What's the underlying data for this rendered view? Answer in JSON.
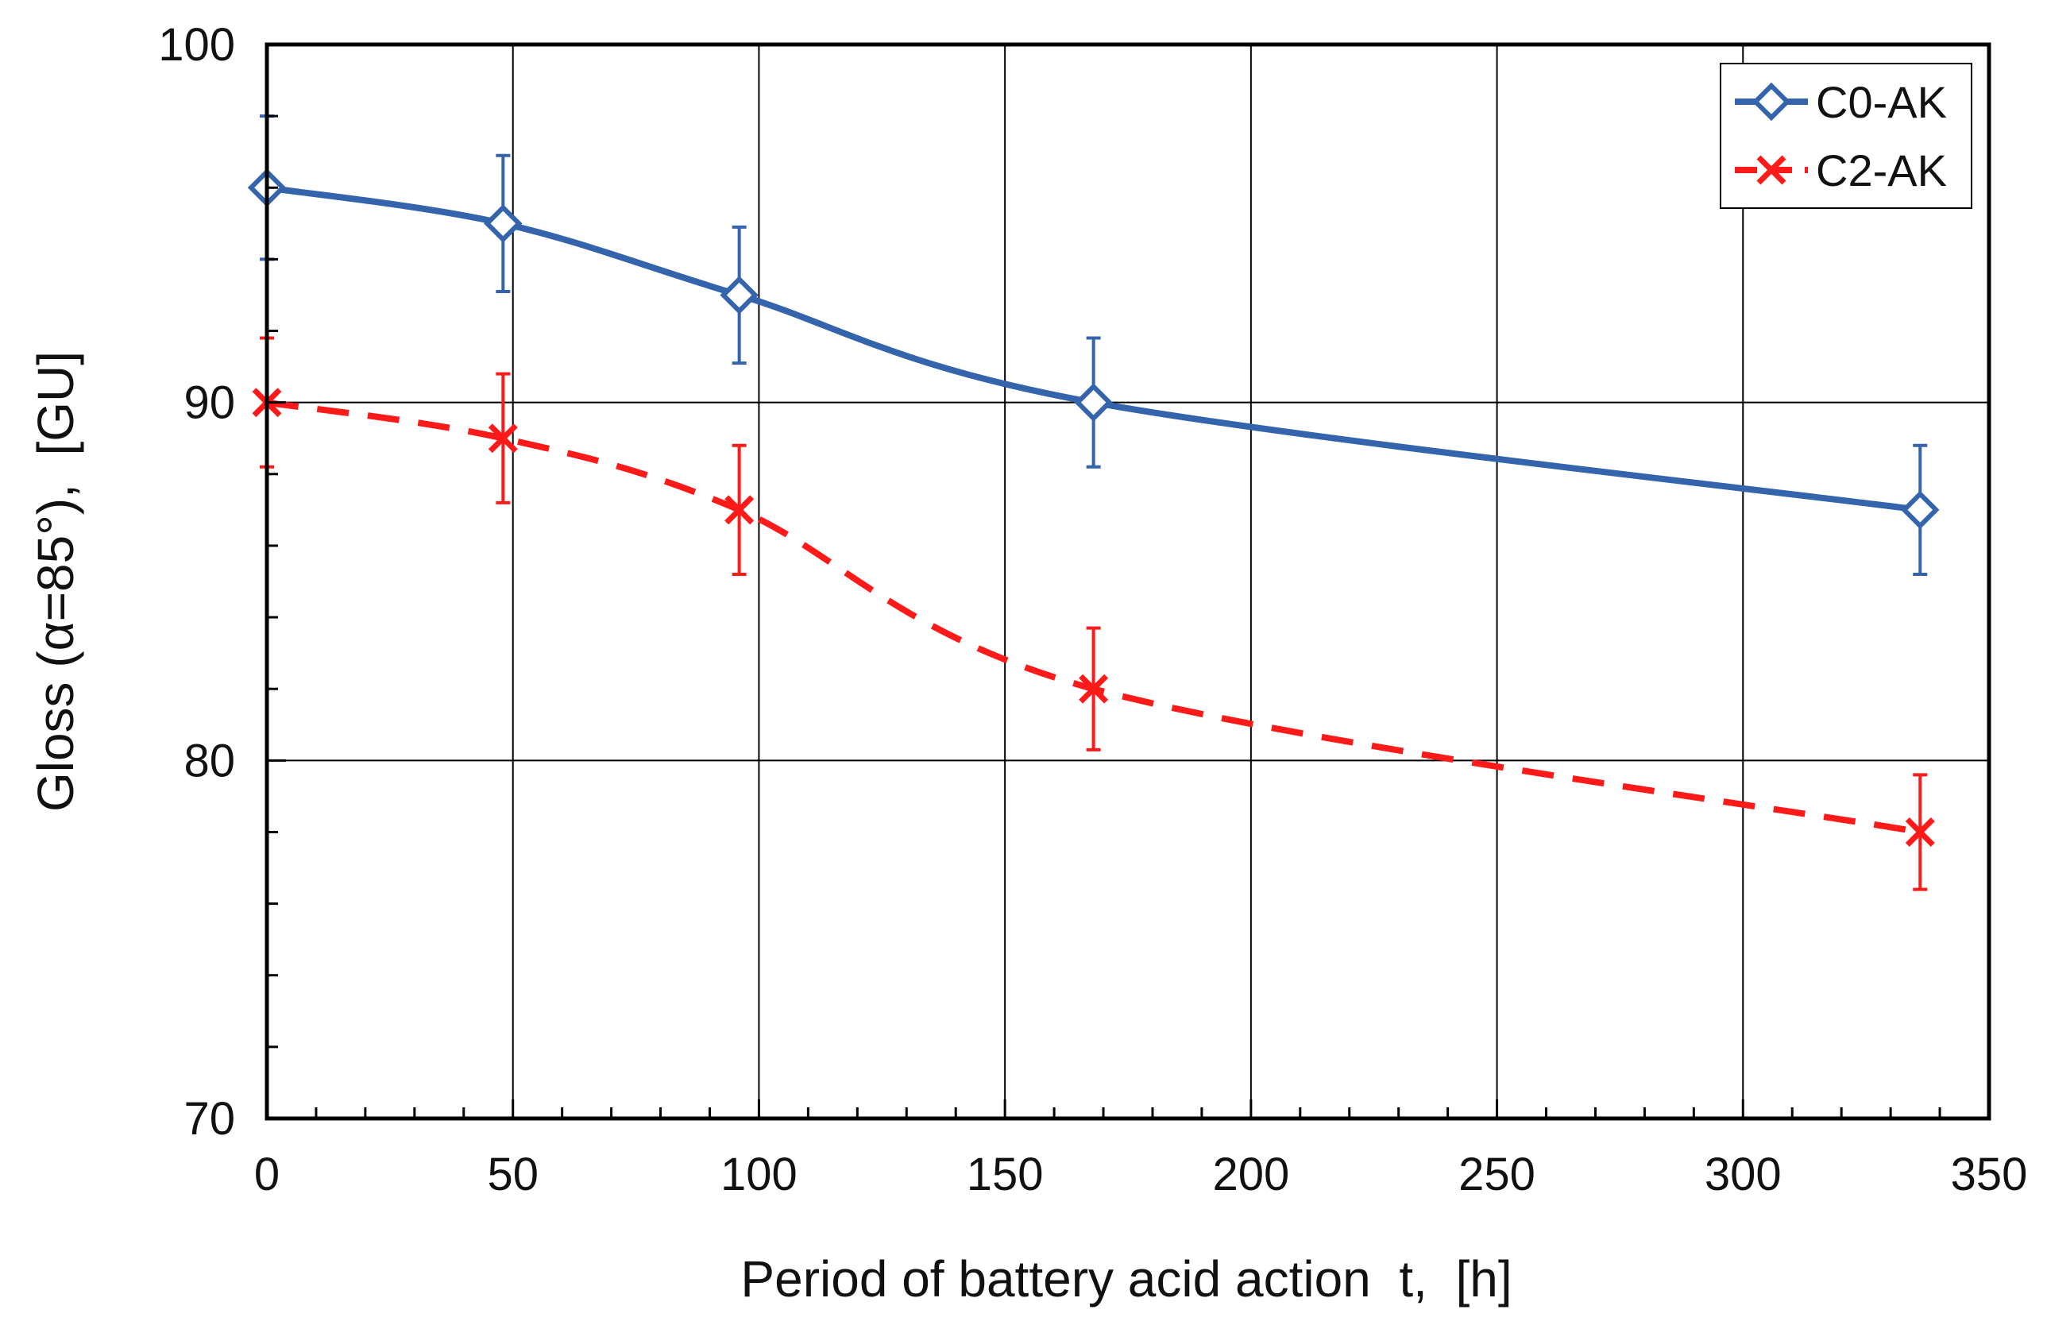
{
  "chart_data": {
    "type": "line",
    "title": "",
    "xlabel": "Period of battery acid action  t,  [h]",
    "ylabel": "Gloss (α=85°),  [GU]",
    "xlim": [
      0,
      350
    ],
    "ylim": [
      70,
      100
    ],
    "x_ticks": [
      0,
      50,
      100,
      150,
      200,
      250,
      300,
      350
    ],
    "y_ticks": [
      70,
      80,
      90,
      100
    ],
    "x_minor_step": 10,
    "y_minor_step": 2,
    "grid": true,
    "legend_position": "top-right",
    "series": [
      {
        "name": "C0-AK",
        "color": "#3464ac",
        "line_style": "solid",
        "marker": "diamond-open",
        "x": [
          0,
          48,
          96,
          168,
          336
        ],
        "values": [
          96,
          95,
          93,
          90,
          87
        ],
        "error": [
          2,
          1.9,
          1.9,
          1.8,
          1.8
        ]
      },
      {
        "name": "C2-AK",
        "color": "#ff1a1a",
        "line_style": "dashed",
        "marker": "x",
        "x": [
          0,
          48,
          96,
          168,
          336
        ],
        "values": [
          90,
          89,
          87,
          82,
          78
        ],
        "error": [
          1.8,
          1.8,
          1.8,
          1.7,
          1.6
        ]
      }
    ]
  }
}
